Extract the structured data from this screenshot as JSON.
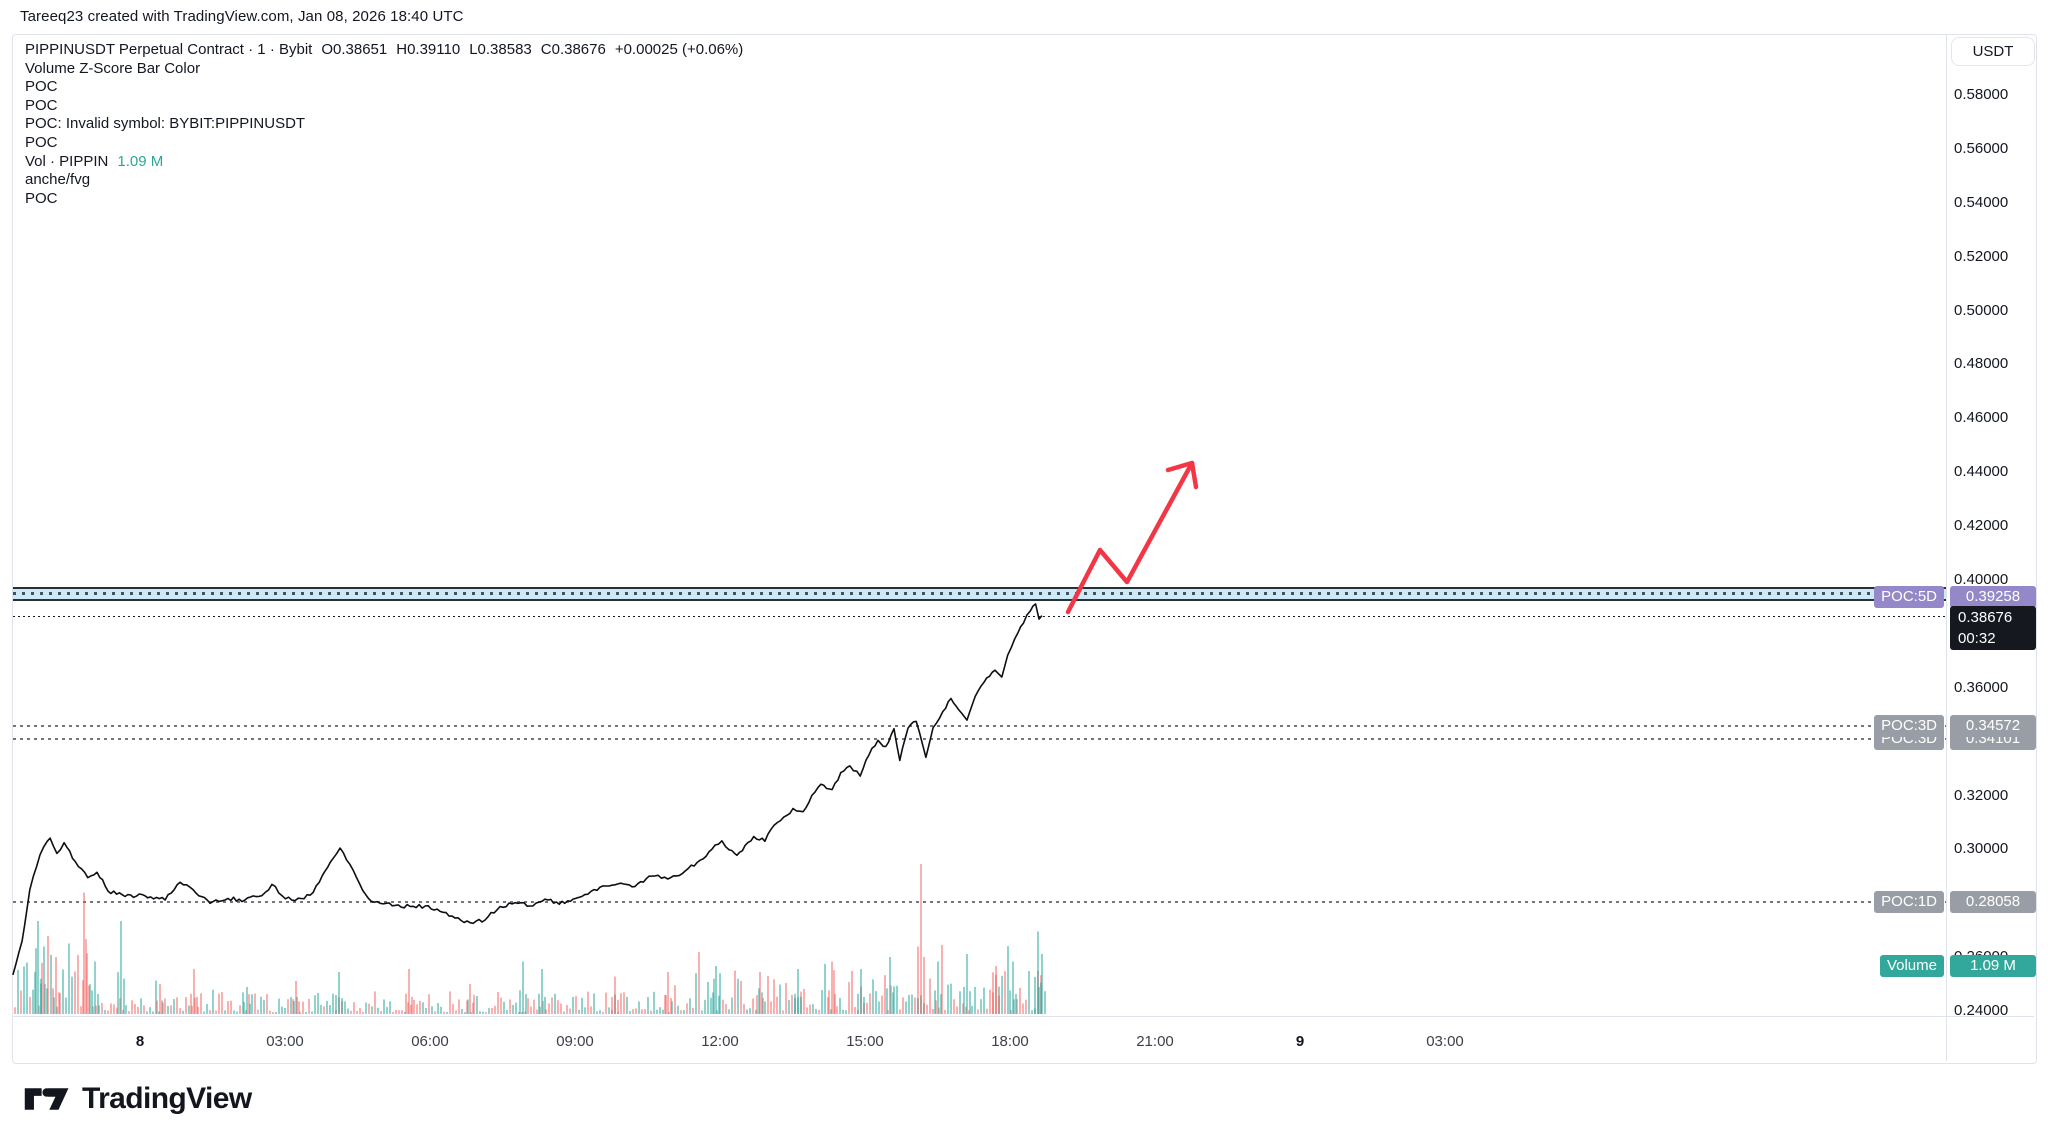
{
  "attribution": "Tareeq23 created with TradingView.com, Jan 08, 2026 18:40 UTC",
  "legend": {
    "title": "PIPPINUSDT Perpetual Contract · 1 · Bybit",
    "ohlc_tokens": [
      "O0.38651",
      "H0.39110",
      "L0.38583",
      "C0.38676",
      "+0.00025 (+0.06%)"
    ],
    "indicator_rows_1": [
      "Volume Z-Score Bar Color",
      "POC",
      "POC",
      "POC: Invalid symbol: BYBIT:PIPPINUSDT",
      "POC"
    ],
    "volume_row": {
      "label": "Vol · PIPPIN",
      "value": "1.09 M",
      "value_color": "#2AA79B"
    },
    "indicator_rows_2": [
      "anche/fvg",
      "POC"
    ]
  },
  "price_axis": {
    "currency_button": "USDT",
    "ticks": [
      0.58,
      0.56,
      0.54,
      0.52,
      0.5,
      0.48,
      0.46,
      0.44,
      0.42,
      0.4,
      0.38,
      0.36,
      0.34,
      0.32,
      0.3,
      0.28,
      0.26,
      0.24
    ]
  },
  "time_axis": {
    "labels": [
      {
        "text": "8",
        "t": 0,
        "bold": true
      },
      {
        "text": "03:00",
        "t": 3,
        "bold": false
      },
      {
        "text": "06:00",
        "t": 6,
        "bold": false
      },
      {
        "text": "09:00",
        "t": 9,
        "bold": false
      },
      {
        "text": "12:00",
        "t": 12,
        "bold": false
      },
      {
        "text": "15:00",
        "t": 15,
        "bold": false
      },
      {
        "text": "18:00",
        "t": 18,
        "bold": false
      },
      {
        "text": "21:00",
        "t": 21,
        "bold": false
      },
      {
        "text": "9",
        "t": 24,
        "bold": true
      },
      {
        "text": "03:00",
        "t": 27,
        "bold": false
      }
    ]
  },
  "tags": [
    {
      "kind": "poc5d",
      "name": "POC:5D",
      "value": "0.39258",
      "price": 0.39258,
      "bg": "#9488C8",
      "dy": -3
    },
    {
      "kind": "poc3d",
      "name": "POC:3D",
      "value": "0.34101",
      "price": 0.34101,
      "bg": "#999DA6",
      "dy": 0
    },
    {
      "kind": "poc3d",
      "name": "POC:3D",
      "value": "0.34572",
      "price": 0.34572,
      "bg": "#999DA6",
      "dy": 0
    },
    {
      "kind": "poc1d",
      "name": "POC:1D",
      "value": "0.28058",
      "price": 0.28058,
      "bg": "#999DA6",
      "dy": 0
    },
    {
      "kind": "volume",
      "name": "Volume",
      "value": "1.09 M",
      "price": 0.2567,
      "bg": "#31A89B",
      "dy": 0
    }
  ],
  "current_price_tag": {
    "value": "0.38676",
    "countdown": "00:32",
    "price": 0.38676,
    "bg": "#15181E",
    "dy": 12
  },
  "footer": {
    "brand": "TradingView"
  },
  "chart_data": {
    "type": "line",
    "title": "PIPPINUSDT Perpetual Contract · 1 · Bybit",
    "interval": "1",
    "quote_currency": "USDT",
    "ohlc": {
      "open": 0.38651,
      "high": 0.3911,
      "low": 0.38583,
      "close": 0.38676,
      "change": 0.00025,
      "change_pct": 0.06
    },
    "ylim": [
      0.2375,
      0.5923
    ],
    "y_ticks": [
      0.24,
      0.26,
      0.28,
      0.3,
      0.32,
      0.34,
      0.36,
      0.38,
      0.4,
      0.42,
      0.44,
      0.46,
      0.48,
      0.5,
      0.52,
      0.54,
      0.56,
      0.58
    ],
    "x_hours_range": [
      -2.63,
      29.6
    ],
    "grid": false,
    "legend_position": "top-left",
    "levels": [
      {
        "name": "POC:5D",
        "price": 0.39258,
        "style": "dotted",
        "color": "#9488C8"
      },
      {
        "name": "last_price",
        "price": 0.38676,
        "style": "dotted",
        "color": "#15181E"
      },
      {
        "name": "POC:3D",
        "price": 0.34572,
        "style": "dotted",
        "color": "#72767F"
      },
      {
        "name": "POC:3D",
        "price": 0.34101,
        "style": "dotted",
        "color": "#72767F"
      },
      {
        "name": "POC:1D",
        "price": 0.28058,
        "style": "dotted",
        "color": "#72767F"
      }
    ],
    "fvg_band": {
      "top_price": 0.3974,
      "bottom_price": 0.3922,
      "fill": "#CDE8F6",
      "border": "#263238",
      "mid_dotted_price": 0.3948
    },
    "price_line_color": "#0E0F13",
    "series_t_price": [
      [
        -2.63,
        0.2534
      ],
      [
        -2.44,
        0.266
      ],
      [
        -2.28,
        0.285
      ],
      [
        -2.07,
        0.298
      ],
      [
        -1.92,
        0.303
      ],
      [
        -1.86,
        0.3042
      ],
      [
        -1.72,
        0.2985
      ],
      [
        -1.57,
        0.3025
      ],
      [
        -1.34,
        0.2955
      ],
      [
        -1.08,
        0.2895
      ],
      [
        -0.89,
        0.2915
      ],
      [
        -0.66,
        0.2845
      ],
      [
        -0.31,
        0.2825
      ],
      [
        0.1,
        0.2828
      ],
      [
        0.52,
        0.2812
      ],
      [
        0.83,
        0.2878
      ],
      [
        1.1,
        0.285
      ],
      [
        1.45,
        0.28
      ],
      [
        1.82,
        0.2818
      ],
      [
        2.17,
        0.2812
      ],
      [
        2.52,
        0.2828
      ],
      [
        2.73,
        0.287
      ],
      [
        2.94,
        0.2828
      ],
      [
        3.21,
        0.281
      ],
      [
        3.52,
        0.283
      ],
      [
        3.77,
        0.2902
      ],
      [
        3.99,
        0.2965
      ],
      [
        4.14,
        0.3005
      ],
      [
        4.34,
        0.2945
      ],
      [
        4.55,
        0.287
      ],
      [
        4.72,
        0.282
      ],
      [
        4.97,
        0.28
      ],
      [
        5.28,
        0.2792
      ],
      [
        5.59,
        0.2788
      ],
      [
        5.9,
        0.279
      ],
      [
        6.21,
        0.277
      ],
      [
        6.52,
        0.2745
      ],
      [
        6.83,
        0.2728
      ],
      [
        7.14,
        0.2738
      ],
      [
        7.45,
        0.2788
      ],
      [
        7.76,
        0.2802
      ],
      [
        8.07,
        0.279
      ],
      [
        8.44,
        0.2812
      ],
      [
        8.79,
        0.28
      ],
      [
        9.14,
        0.2825
      ],
      [
        9.52,
        0.286
      ],
      [
        9.89,
        0.2872
      ],
      [
        10.24,
        0.2862
      ],
      [
        10.59,
        0.2901
      ],
      [
        10.92,
        0.289
      ],
      [
        11.28,
        0.292
      ],
      [
        11.59,
        0.296
      ],
      [
        11.83,
        0.3
      ],
      [
        12.04,
        0.3032
      ],
      [
        12.19,
        0.2998
      ],
      [
        12.35,
        0.2978
      ],
      [
        12.52,
        0.3015
      ],
      [
        12.7,
        0.3048
      ],
      [
        12.93,
        0.303
      ],
      [
        13.12,
        0.309
      ],
      [
        13.32,
        0.312
      ],
      [
        13.51,
        0.3152
      ],
      [
        13.72,
        0.314
      ],
      [
        13.9,
        0.32
      ],
      [
        14.09,
        0.3242
      ],
      [
        14.32,
        0.3222
      ],
      [
        14.5,
        0.3285
      ],
      [
        14.69,
        0.331
      ],
      [
        14.9,
        0.3272
      ],
      [
        15.08,
        0.335
      ],
      [
        15.27,
        0.3405
      ],
      [
        15.43,
        0.3382
      ],
      [
        15.6,
        0.3448
      ],
      [
        15.72,
        0.333
      ],
      [
        15.89,
        0.345
      ],
      [
        16.06,
        0.3475
      ],
      [
        16.26,
        0.3342
      ],
      [
        16.41,
        0.3452
      ],
      [
        16.61,
        0.3512
      ],
      [
        16.78,
        0.356
      ],
      [
        16.94,
        0.3518
      ],
      [
        17.11,
        0.348
      ],
      [
        17.28,
        0.3568
      ],
      [
        17.46,
        0.362
      ],
      [
        17.69,
        0.3665
      ],
      [
        17.83,
        0.364
      ],
      [
        17.95,
        0.372
      ],
      [
        18.1,
        0.3782
      ],
      [
        18.28,
        0.384
      ],
      [
        18.42,
        0.3885
      ],
      [
        18.53,
        0.3911
      ],
      [
        18.6,
        0.3855
      ],
      [
        18.66,
        0.38676
      ]
    ],
    "volume": {
      "last_value": "1.09 M",
      "up_color": "rgba(38,166,154,0.50)",
      "down_color": "rgba(239,83,80,0.45)",
      "spikes_t_frac_dir": [
        [
          -2.13,
          0.62,
          "up"
        ],
        [
          -2.0,
          0.45,
          "up"
        ],
        [
          -1.75,
          0.38,
          "down"
        ],
        [
          -1.14,
          0.5,
          "down"
        ],
        [
          -0.95,
          0.35,
          "up"
        ],
        [
          -0.41,
          0.62,
          "up"
        ],
        [
          0.4,
          0.2,
          "down"
        ],
        [
          1.1,
          0.3,
          "down"
        ],
        [
          2.2,
          0.18,
          "up"
        ],
        [
          3.2,
          0.22,
          "down"
        ],
        [
          4.1,
          0.28,
          "up"
        ],
        [
          5.55,
          0.3,
          "down"
        ],
        [
          6.8,
          0.2,
          "down"
        ],
        [
          7.9,
          0.35,
          "up"
        ],
        [
          8.3,
          0.3,
          "up"
        ],
        [
          9.8,
          0.25,
          "down"
        ],
        [
          10.9,
          0.28,
          "down"
        ],
        [
          11.9,
          0.32,
          "up"
        ],
        [
          12.8,
          0.28,
          "down"
        ],
        [
          13.6,
          0.3,
          "up"
        ],
        [
          14.3,
          0.35,
          "down"
        ],
        [
          14.9,
          0.3,
          "up"
        ],
        [
          15.5,
          0.38,
          "up"
        ],
        [
          16.14,
          1.0,
          "down"
        ],
        [
          16.5,
          0.35,
          "up"
        ],
        [
          17.1,
          0.4,
          "up"
        ],
        [
          17.7,
          0.32,
          "down"
        ],
        [
          18.05,
          0.35,
          "up"
        ],
        [
          18.56,
          0.55,
          "up"
        ],
        [
          18.64,
          0.4,
          "up"
        ]
      ]
    },
    "annotation_arrow": {
      "color": "#F23645",
      "points_t_price": [
        [
          19.2,
          0.3881
        ],
        [
          19.86,
          0.4111
        ],
        [
          20.42,
          0.3993
        ],
        [
          21.76,
          0.4434
        ]
      ],
      "head_t_price": [
        [
          21.27,
          0.4408
        ],
        [
          21.76,
          0.4434
        ],
        [
          21.85,
          0.4345
        ]
      ]
    }
  }
}
